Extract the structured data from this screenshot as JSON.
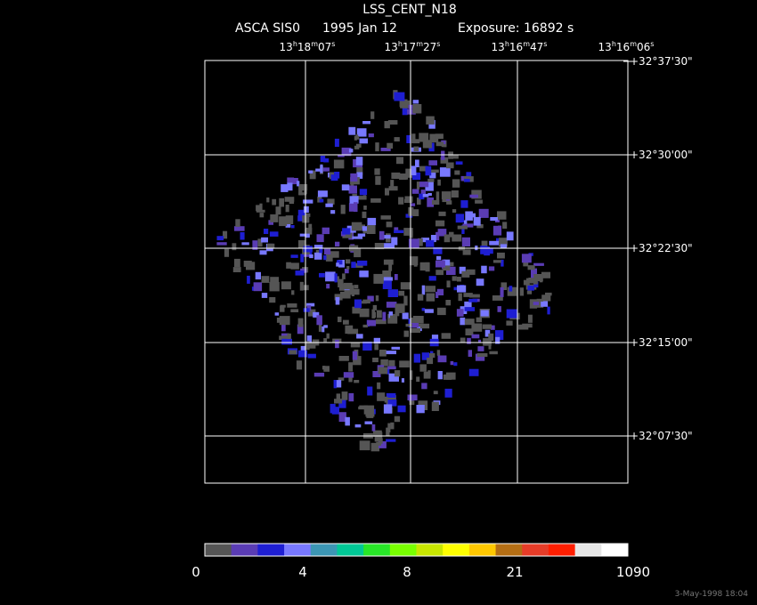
{
  "header": {
    "title": "LSS_CENT_N18",
    "instrument": "ASCA SIS0",
    "date": "1995 Jan 12",
    "exposure": "Exposure: 16892 s"
  },
  "ra_labels": [
    [
      "13",
      "h",
      "18",
      "m",
      "07",
      "s"
    ],
    [
      "13",
      "h",
      "17",
      "m",
      "27",
      "s"
    ],
    [
      "13",
      "h",
      "16",
      "m",
      "47",
      "s"
    ],
    [
      "13",
      "h",
      "16",
      "m",
      "06",
      "s"
    ]
  ],
  "dec_labels": [
    "+32°37'30\"",
    "+32°30'00\"",
    "+32°22'30\"",
    "+32°15'00\"",
    "+32°07'30\""
  ],
  "colorbar": {
    "colors": [
      "#555555",
      "#5a3cb4",
      "#1e1ed2",
      "#7878ff",
      "#3c96b4",
      "#00c896",
      "#28e628",
      "#78ff00",
      "#c8e600",
      "#ffff00",
      "#ffc800",
      "#b46e14",
      "#e63c28",
      "#ff1e00",
      "#e6e6e6",
      "#ffffff"
    ],
    "ticks": [
      "0",
      "4",
      "8",
      "21",
      "1090"
    ]
  },
  "footer": "3-May-1998 18:04"
}
